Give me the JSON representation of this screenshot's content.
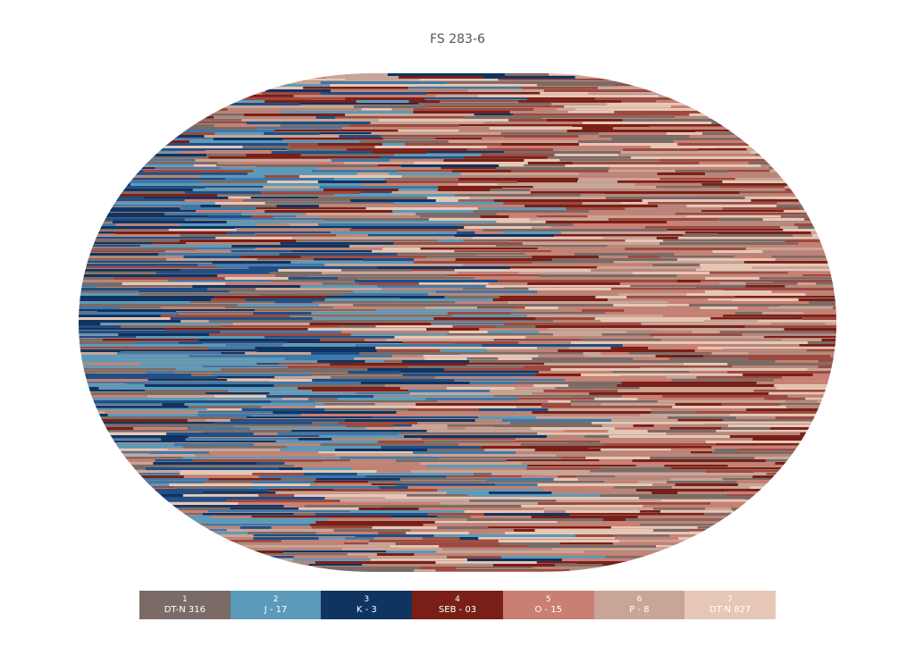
{
  "title": "FS 283-6",
  "legend": [
    {
      "number": "1",
      "code": "DT-N 316"
    },
    {
      "number": "2",
      "code": "J - 17"
    },
    {
      "number": "3",
      "code": "K - 3"
    },
    {
      "number": "4",
      "code": "SEB - 03"
    },
    {
      "number": "5",
      "code": "O - 15"
    },
    {
      "number": "6",
      "code": "P - 8"
    },
    {
      "number": "7",
      "code": "DT-N 827"
    }
  ]
}
